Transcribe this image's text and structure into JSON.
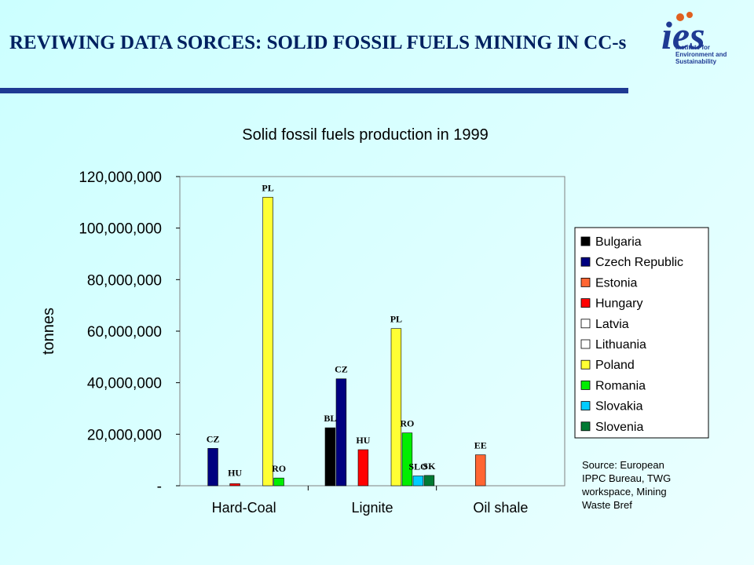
{
  "slide": {
    "title": "REVIWING DATA SORCES: SOLID FOSSIL FUELS MINING IN CC-s",
    "logo_text": "ies",
    "logo_tagline": [
      "Institute for",
      "Environment and",
      "Sustainability"
    ],
    "accent_color": "#1f3a93"
  },
  "chart_data": {
    "type": "bar",
    "title": "Solid fossil fuels production in 1999",
    "ylabel": "tonnes",
    "xlabel": "",
    "ylim": [
      0,
      120000000
    ],
    "y_ticks": [
      "-",
      "20,000,000",
      "40,000,000",
      "60,000,000",
      "80,000,000",
      "100,000,000",
      "120,000,000"
    ],
    "categories": [
      "Hard-Coal",
      "Lignite",
      "Oil shale"
    ],
    "grid": false,
    "legend_position": "right",
    "series": [
      {
        "name": "Bulgaria",
        "color": "#000000",
        "values": [
          0,
          22500000,
          0
        ],
        "labels": [
          "",
          "BL",
          ""
        ]
      },
      {
        "name": "Czech Republic",
        "color": "#000080",
        "values": [
          14500000,
          41500000,
          0
        ],
        "labels": [
          "CZ",
          "CZ",
          ""
        ]
      },
      {
        "name": "Estonia",
        "color": "#ff6633",
        "values": [
          0,
          0,
          12000000
        ],
        "labels": [
          "",
          "",
          "EE"
        ]
      },
      {
        "name": "Hungary",
        "color": "#ff0000",
        "values": [
          800000,
          14000000,
          0
        ],
        "labels": [
          "HU",
          "HU",
          ""
        ]
      },
      {
        "name": "Latvia",
        "color": "#ffffff",
        "values": [
          0,
          0,
          0
        ],
        "labels": [
          "",
          "",
          ""
        ]
      },
      {
        "name": "Lithuania",
        "color": "#ffffff",
        "values": [
          0,
          0,
          0
        ],
        "labels": [
          "",
          "",
          ""
        ]
      },
      {
        "name": "Poland",
        "color": "#ffff33",
        "values": [
          112000000,
          61000000,
          0
        ],
        "labels": [
          "PL",
          "PL",
          ""
        ]
      },
      {
        "name": "Romania",
        "color": "#00ee00",
        "values": [
          3000000,
          20500000,
          0
        ],
        "labels": [
          "RO",
          "RO",
          ""
        ]
      },
      {
        "name": "Slovakia",
        "color": "#00ccff",
        "values": [
          0,
          3800000,
          0
        ],
        "labels": [
          "",
          "SLO",
          ""
        ]
      },
      {
        "name": "Slovenia",
        "color": "#007a33",
        "values": [
          0,
          4000000,
          0
        ],
        "labels": [
          "",
          "SK",
          ""
        ]
      }
    ],
    "source": "Source: European IPPC Bureau, TWG workspace, Mining Waste Bref"
  }
}
